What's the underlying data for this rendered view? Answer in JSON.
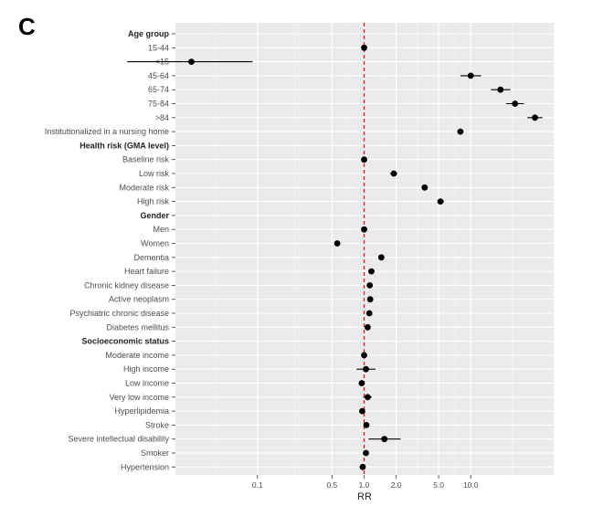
{
  "panel_label": "C",
  "chart_data": {
    "type": "scatter",
    "style": "forest-plot",
    "xlabel": "RR",
    "x_scale": "log",
    "xlim": [
      0.017,
      60
    ],
    "x_ticks": [
      0.1,
      0.5,
      1.0,
      2.0,
      5.0,
      10.0
    ],
    "x_tick_labels": [
      "0.1",
      "0.5",
      "1.0",
      "2.0",
      "5.0",
      "10.0"
    ],
    "reference_line": {
      "x": 1.0,
      "color": "#e31a1c",
      "style": "dashed"
    },
    "panel_background": "#ebebeb",
    "grid": true,
    "rows": [
      {
        "label": "Age group",
        "header": true
      },
      {
        "label": "15-44",
        "rr": 1.0,
        "lo": 0.97,
        "hi": 1.03
      },
      {
        "label": "<15",
        "rr": 0.024,
        "lo": 0.006,
        "hi": 0.09
      },
      {
        "label": "45-64",
        "rr": 10.0,
        "lo": 8.0,
        "hi": 12.5
      },
      {
        "label": "65-74",
        "rr": 19.0,
        "lo": 15.5,
        "hi": 23.5
      },
      {
        "label": "75-84",
        "rr": 26.0,
        "lo": 21.5,
        "hi": 31.5
      },
      {
        "label": ">84",
        "rr": 40.0,
        "lo": 34.0,
        "hi": 47.0
      },
      {
        "label": "Institutionalized in a nursing home",
        "rr": 8.0,
        "lo": 7.5,
        "hi": 8.5
      },
      {
        "label": "Health risk (GMA level)",
        "header": true
      },
      {
        "label": "Baseline risk",
        "rr": 1.0,
        "lo": 0.95,
        "hi": 1.05
      },
      {
        "label": "Low risk",
        "rr": 1.9,
        "lo": 1.75,
        "hi": 2.05
      },
      {
        "label": "Moderate risk",
        "rr": 3.7,
        "lo": 3.45,
        "hi": 3.95
      },
      {
        "label": "High risk",
        "rr": 5.2,
        "lo": 4.9,
        "hi": 5.6
      },
      {
        "label": "Gender",
        "header": true
      },
      {
        "label": "Men",
        "rr": 1.0,
        "lo": 0.97,
        "hi": 1.03
      },
      {
        "label": "Women",
        "rr": 0.56,
        "lo": 0.53,
        "hi": 0.59
      },
      {
        "label": "Dementia",
        "rr": 1.45,
        "lo": 1.38,
        "hi": 1.52
      },
      {
        "label": "Heart failure",
        "rr": 1.17,
        "lo": 1.1,
        "hi": 1.25
      },
      {
        "label": "Chronic kidney disease",
        "rr": 1.13,
        "lo": 1.07,
        "hi": 1.19
      },
      {
        "label": "Active neoplasm",
        "rr": 1.14,
        "lo": 1.08,
        "hi": 1.2
      },
      {
        "label": "Psychiatric chronic disease",
        "rr": 1.12,
        "lo": 1.06,
        "hi": 1.18
      },
      {
        "label": "Diabetes mellitus",
        "rr": 1.08,
        "lo": 1.03,
        "hi": 1.13
      },
      {
        "label": "Socioeconomic status",
        "header": true
      },
      {
        "label": "Moderate income",
        "rr": 1.0,
        "lo": 0.96,
        "hi": 1.04
      },
      {
        "label": "High income",
        "rr": 1.04,
        "lo": 0.85,
        "hi": 1.28
      },
      {
        "label": "Low income",
        "rr": 0.95,
        "lo": 0.9,
        "hi": 1.0
      },
      {
        "label": "Very low income",
        "rr": 1.08,
        "lo": 0.98,
        "hi": 1.18
      },
      {
        "label": "Hyperlipidemia",
        "rr": 0.96,
        "lo": 0.92,
        "hi": 1.0
      },
      {
        "label": "Stroke",
        "rr": 1.05,
        "lo": 0.99,
        "hi": 1.11
      },
      {
        "label": "Severe intellectual disability",
        "rr": 1.55,
        "lo": 1.1,
        "hi": 2.2
      },
      {
        "label": "Smoker",
        "rr": 1.04,
        "lo": 1.0,
        "hi": 1.08
      },
      {
        "label": "Hypertension",
        "rr": 0.97,
        "lo": 0.93,
        "hi": 1.01
      }
    ]
  }
}
